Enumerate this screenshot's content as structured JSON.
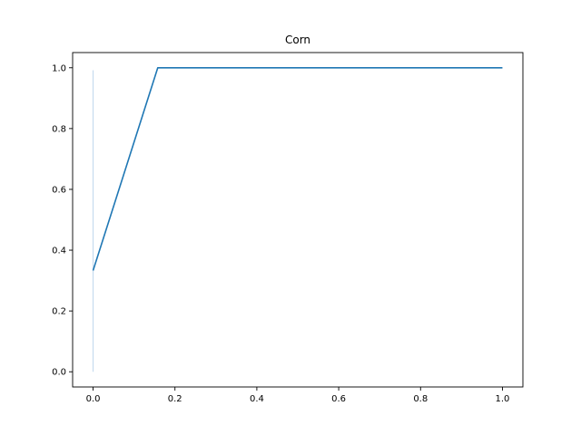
{
  "chart_data": {
    "type": "line",
    "title": "Corn",
    "xlabel": "",
    "ylabel": "",
    "xlim": [
      -0.05,
      1.05
    ],
    "ylim": [
      -0.05,
      1.05
    ],
    "grid": false,
    "x_ticks": [
      0.0,
      0.2,
      0.4,
      0.6,
      0.8,
      1.0
    ],
    "x_tick_labels": [
      "0.0",
      "0.2",
      "0.4",
      "0.6",
      "0.8",
      "1.0"
    ],
    "y_ticks": [
      0.0,
      0.2,
      0.4,
      0.6,
      0.8,
      1.0
    ],
    "y_tick_labels": [
      "0.0",
      "0.2",
      "0.4",
      "0.6",
      "0.8",
      "1.0"
    ],
    "series": [
      {
        "color": "#1f77b4",
        "x": [
          0.0,
          0.158,
          1.0
        ],
        "y": [
          0.333,
          1.0,
          1.0
        ]
      }
    ],
    "band": {
      "color": "#c6dbef",
      "x": [
        0.0,
        0.0
      ],
      "y": [
        0.0,
        0.992
      ]
    }
  }
}
